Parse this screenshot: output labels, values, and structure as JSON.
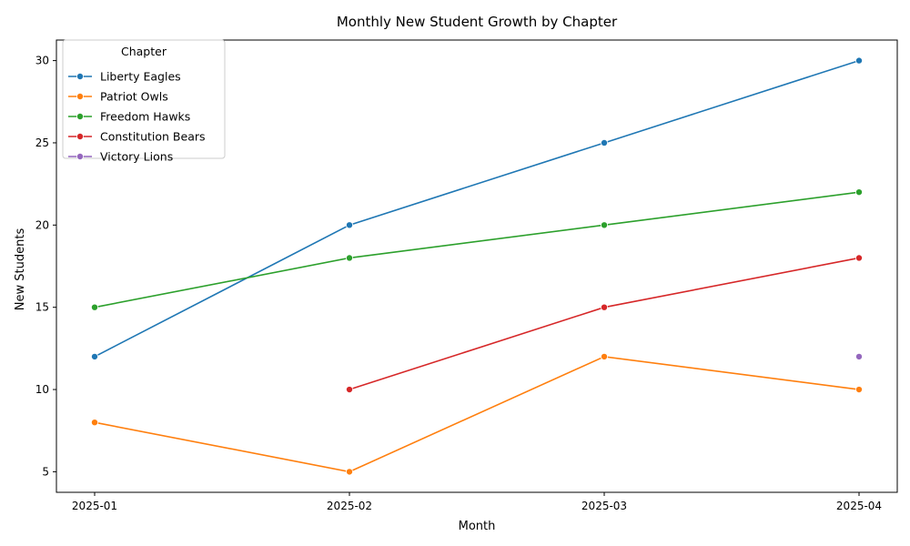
{
  "chart_data": {
    "type": "line",
    "title": "Monthly New Student Growth by Chapter",
    "xlabel": "Month",
    "ylabel": "New Students",
    "categories": [
      "2025-01",
      "2025-02",
      "2025-03",
      "2025-04"
    ],
    "ylim": [
      3.75,
      31.25
    ],
    "yticks": [
      5,
      10,
      15,
      20,
      25,
      30
    ],
    "grid": false,
    "legend": {
      "title": "Chapter",
      "placement": "top-left"
    },
    "series": [
      {
        "name": "Liberty Eagles",
        "color": "#1f77b4",
        "values": [
          12,
          20,
          25,
          30
        ]
      },
      {
        "name": "Patriot Owls",
        "color": "#ff7f0e",
        "values": [
          8,
          5,
          12,
          10
        ]
      },
      {
        "name": "Freedom Hawks",
        "color": "#2ca02c",
        "values": [
          15,
          18,
          20,
          22
        ]
      },
      {
        "name": "Constitution Bears",
        "color": "#d62728",
        "values": [
          null,
          10,
          15,
          18
        ]
      },
      {
        "name": "Victory Lions",
        "color": "#9467bd",
        "values": [
          null,
          null,
          null,
          12
        ]
      }
    ]
  }
}
